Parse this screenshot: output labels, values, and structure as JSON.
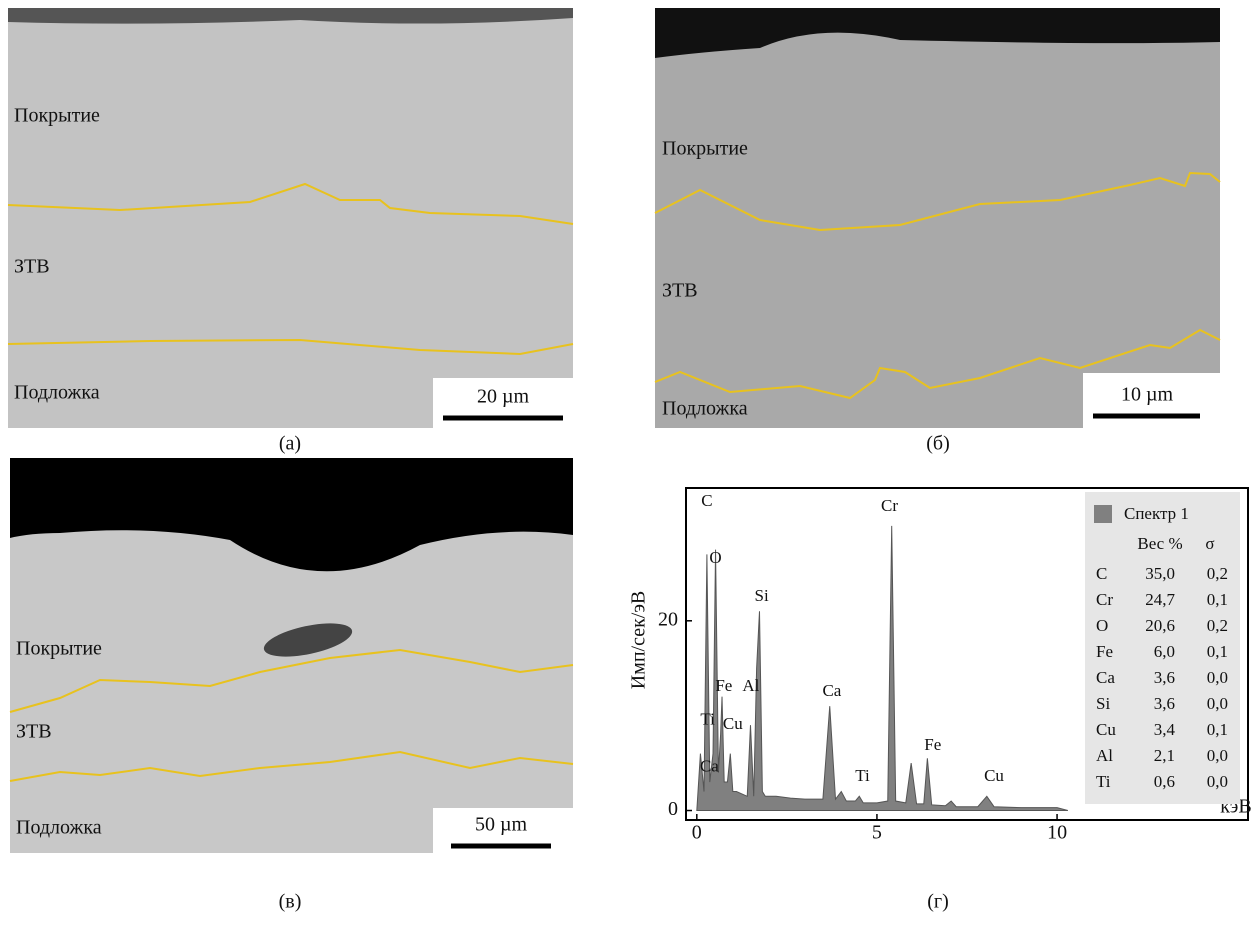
{
  "panels": [
    {
      "label": "(а)",
      "layers": [
        "Покрытие",
        "ЗТВ",
        "Подложка"
      ],
      "scale": "20 µm"
    },
    {
      "label": "(б)",
      "layers": [
        "Покрытие",
        "ЗТВ",
        "Подложка"
      ],
      "scale": "10 µm"
    },
    {
      "label": "(в)",
      "layers": [
        "Покрытие",
        "ЗТВ",
        "Подложка"
      ],
      "scale": "50 µm"
    },
    {
      "label": "(г)"
    }
  ],
  "chart_data": {
    "type": "area",
    "xlabel": "кэВ",
    "ylabel": "Имп/сек/эВ",
    "x": [
      0,
      0.1,
      0.2,
      0.28,
      0.36,
      0.45,
      0.52,
      0.6,
      0.66,
      0.7,
      0.76,
      0.85,
      0.93,
      1.0,
      1.1,
      1.4,
      1.49,
      1.58,
      1.66,
      1.74,
      1.82,
      1.9,
      2.2,
      2.6,
      3.0,
      3.5,
      3.69,
      3.85,
      4.01,
      4.15,
      4.4,
      4.51,
      4.62,
      5.0,
      5.3,
      5.41,
      5.52,
      5.8,
      5.95,
      6.1,
      6.3,
      6.4,
      6.52,
      6.9,
      7.06,
      7.2,
      7.8,
      8.05,
      8.25,
      9.0,
      10.0,
      10.3
    ],
    "series": [
      {
        "name": "Спектр 1",
        "color": "#808080",
        "values": [
          0,
          6,
          2,
          27,
          3,
          6,
          27.5,
          4,
          8,
          12,
          3,
          3,
          6,
          2,
          2,
          1.5,
          9,
          1.5,
          15,
          21,
          2,
          1.5,
          1.5,
          1.3,
          1.2,
          1.2,
          11,
          1.2,
          2,
          1,
          1,
          1.5,
          0.8,
          0.8,
          1,
          30,
          1,
          0.8,
          5,
          0.7,
          0.7,
          5.5,
          0.6,
          0.5,
          1,
          0.4,
          0.4,
          1.5,
          0.4,
          0.3,
          0.3,
          0
        ]
      }
    ],
    "xlim": [
      -0.3,
      15.3
    ],
    "ylim": [
      -1,
      34
    ],
    "xticks": [
      0,
      5,
      10
    ],
    "yticks": [
      0,
      20
    ],
    "annotations": [
      {
        "text": "C",
        "x": 0.28,
        "y": 32.5
      },
      {
        "text": "O",
        "x": 0.52,
        "y": 26.5
      },
      {
        "text": "Fe",
        "x": 0.75,
        "y": 13
      },
      {
        "text": "Al",
        "x": 1.5,
        "y": 13
      },
      {
        "text": "Si",
        "x": 1.8,
        "y": 22.5
      },
      {
        "text": "Ti",
        "x": 0.3,
        "y": 9.5
      },
      {
        "text": "Cu",
        "x": 1.0,
        "y": 9
      },
      {
        "text": "Ca",
        "x": 0.35,
        "y": 4.5
      },
      {
        "text": "Ca",
        "x": 3.75,
        "y": 12.5
      },
      {
        "text": "Ti",
        "x": 4.6,
        "y": 3.5
      },
      {
        "text": "Cr",
        "x": 5.35,
        "y": 32
      },
      {
        "text": "Fe",
        "x": 6.55,
        "y": 6.8
      },
      {
        "text": "Cu",
        "x": 8.25,
        "y": 3.5
      }
    ]
  },
  "table": {
    "header": [
      "Вес %",
      "σ"
    ],
    "rows": [
      [
        "C",
        "35,0",
        "0,2"
      ],
      [
        "Cr",
        "24,7",
        "0,1"
      ],
      [
        "O",
        "20,6",
        "0,2"
      ],
      [
        "Fe",
        "6,0",
        "0,1"
      ],
      [
        "Ca",
        "3,6",
        "0,0"
      ],
      [
        "Si",
        "3,6",
        "0,0"
      ],
      [
        "Cu",
        "3,4",
        "0,1"
      ],
      [
        "Al",
        "2,1",
        "0,0"
      ],
      [
        "Ti",
        "0,6",
        "0,0"
      ]
    ]
  }
}
